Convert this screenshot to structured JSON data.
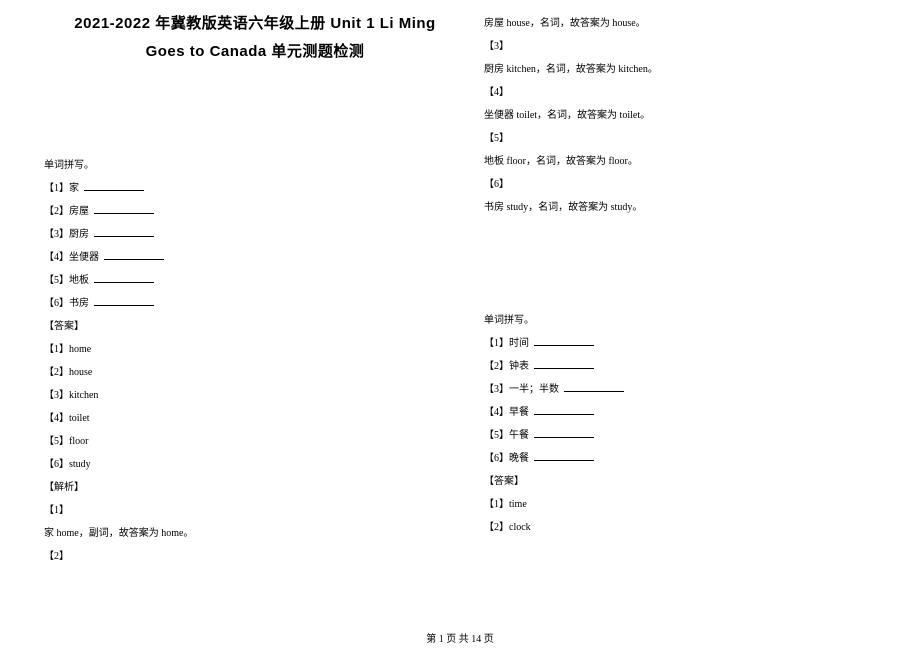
{
  "title_line1": "2021-2022 年冀教版英语六年级上册 Unit 1 Li Ming",
  "title_line2": "Goes to Canada 单元测题检测",
  "left": {
    "heading": "单词拼写。",
    "q1": "【1】家",
    "q2": "【2】房屋",
    "q3": "【3】厨房",
    "q4": "【4】坐便器",
    "q5": "【5】地板",
    "q6": "【6】书房",
    "ans_label": "【答案】",
    "a1": "【1】home",
    "a2": "【2】house",
    "a3": "【3】kitchen",
    "a4": "【4】toilet",
    "a5": "【5】floor",
    "a6": "【6】study",
    "exp_label": "【解析】",
    "e1_label": "【1】",
    "e1": "家 home，副词，故答案为 home。",
    "e2_label": "【2】"
  },
  "right": {
    "e2": "房屋 house，名词，故答案为 house。",
    "e3_label": "【3】",
    "e3": "厨房 kitchen，名词，故答案为 kitchen。",
    "e4_label": "【4】",
    "e4": "坐便器 toilet，名词，故答案为 toilet。",
    "e5_label": "【5】",
    "e5": "地板 floor，名词，故答案为 floor。",
    "e6_label": "【6】",
    "e6": "书房 study，名词，故答案为 study。",
    "heading2": "单词拼写。",
    "q1": "【1】时间",
    "q2": "【2】钟表",
    "q3": "【3】一半；半数",
    "q4": "【4】早餐",
    "q5": "【5】午餐",
    "q6": "【6】晚餐",
    "ans_label": "【答案】",
    "a1": "【1】time",
    "a2": "【2】clock"
  },
  "footer": "第 1 页 共 14 页"
}
